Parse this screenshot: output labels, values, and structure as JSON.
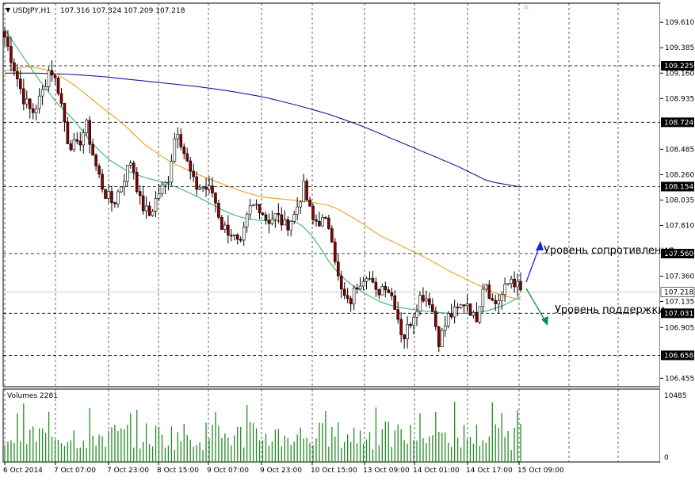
{
  "header": {
    "symbol": "USDJPY,H1",
    "ohlc": "107.316 107.324 107.209 107.218"
  },
  "volumes_label": "Volumes 2281",
  "volume_axis": {
    "top": "10485",
    "bottom": "0"
  },
  "annotations": {
    "resistance": "Уровень сопротивления",
    "support": "Уровень поддержки"
  },
  "colors": {
    "bull_candle": "#ffffff",
    "bear_candle": "#8b0000",
    "ma_fast": "#3cb371",
    "ma_mid": "#f0a020",
    "ma_slow": "#1a1a9c",
    "volume": "#228b22",
    "resistance_arrow": "#1c28d8",
    "support_arrow": "#0f8c48"
  },
  "chart_data": {
    "type": "candlestick",
    "symbol": "USDJPY",
    "timeframe": "H1",
    "ylim": [
      106.38,
      109.78
    ],
    "y_ticks": [
      "109.610",
      "109.385",
      "109.160",
      "108.935",
      "108.485",
      "108.260",
      "108.035",
      "107.810",
      "107.360",
      "107.135",
      "106.905",
      "106.455"
    ],
    "levels": [
      {
        "value": 109.225,
        "label": "109.225"
      },
      {
        "value": 108.724,
        "label": "108.724"
      },
      {
        "value": 108.154,
        "label": "108.154"
      },
      {
        "value": 107.56,
        "label": "107.560"
      },
      {
        "value": 107.031,
        "label": "107.031"
      },
      {
        "value": 106.658,
        "label": "106.658"
      }
    ],
    "current_price": {
      "value": 107.218,
      "label": "107.218"
    },
    "x_labels": [
      "6 Oct 2014",
      "7 Oct 07:00",
      "7 Oct 23:00",
      "8 Oct 15:00",
      "9 Oct 07:00",
      "9 Oct 23:00",
      "10 Oct 15:00",
      "13 Oct 09:00",
      "14 Oct 01:00",
      "14 Oct 17:00",
      "15 Oct 09:00"
    ],
    "anchors": [
      109.48,
      109.22,
      108.95,
      108.8,
      108.95,
      109.22,
      109.0,
      108.55,
      108.5,
      108.7,
      108.35,
      108.1,
      108.0,
      108.2,
      108.4,
      108.0,
      107.9,
      108.1,
      108.2,
      108.7,
      108.4,
      108.15,
      108.15,
      108.1,
      107.8,
      107.75,
      107.6,
      107.95,
      108.0,
      107.85,
      107.9,
      107.8,
      107.9,
      108.15,
      107.85,
      107.85,
      107.8,
      107.25,
      107.1,
      107.3,
      107.4,
      107.2,
      107.3,
      107.15,
      106.8,
      107.0,
      107.2,
      107.15,
      106.78,
      107.0,
      107.05,
      107.15,
      106.95,
      107.35,
      107.1,
      107.2,
      107.35,
      107.22
    ],
    "ma_fast_anchors": [
      109.55,
      109.32,
      109.1,
      108.9,
      108.75,
      108.55,
      108.4,
      108.3,
      108.24,
      108.2,
      108.15,
      108.08,
      108.0,
      107.92,
      107.87,
      107.85,
      107.85,
      107.85,
      107.7,
      107.45,
      107.3,
      107.2,
      107.12,
      107.08,
      107.06,
      107.04,
      107.03,
      107.03,
      107.05,
      107.1,
      107.18
    ],
    "ma_mid_anchors": [
      109.18,
      109.22,
      109.18,
      109.05,
      108.88,
      108.72,
      108.52,
      108.38,
      108.28,
      108.2,
      108.12,
      108.06,
      108.04,
      108.02,
      107.98,
      107.86,
      107.72,
      107.62,
      107.52,
      107.4,
      107.3,
      107.2,
      107.15
    ],
    "ma_slow_anchors": [
      109.16,
      109.16,
      109.15,
      109.13,
      109.1,
      109.07,
      109.04,
      109.0,
      108.95,
      108.88,
      108.8,
      108.7,
      108.58,
      108.46,
      108.34,
      108.2,
      108.15
    ]
  }
}
